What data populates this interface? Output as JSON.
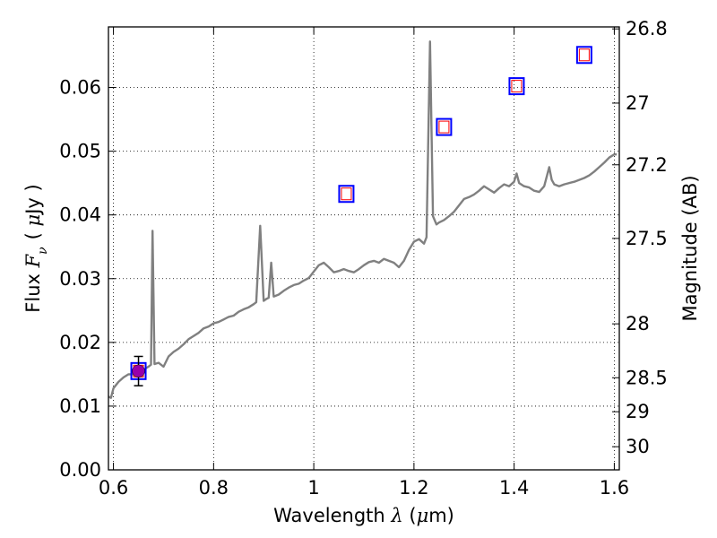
{
  "chart_data": {
    "type": "line",
    "x_axis": {
      "label_prefix": "Wavelength ",
      "label_symbol": "λ",
      "label_unit_open": " (",
      "label_unit_mu": "μ",
      "label_unit_close": "m)",
      "xlim": [
        0.59,
        1.61
      ],
      "ticks": [
        0.6,
        0.8,
        1.0,
        1.2,
        1.4,
        1.6
      ],
      "tick_labels": [
        "0.6",
        "0.8",
        "1",
        "1.2",
        "1.4",
        "1.6"
      ]
    },
    "y_axis_left": {
      "label_prefix": "Flux ",
      "label_symbol": "F",
      "label_subscript": "ν",
      "label_unit_open": "( ",
      "label_unit_mu": "μ",
      "label_unit_close": "Jy )",
      "ylim": [
        0.0,
        0.0695
      ],
      "ticks": [
        0.0,
        0.01,
        0.02,
        0.03,
        0.04,
        0.05,
        0.06
      ],
      "tick_labels": [
        "0.00",
        "0.01",
        "0.02",
        "0.03",
        "0.04",
        "0.05",
        "0.06"
      ]
    },
    "y_axis_right": {
      "label": "Magnitude (AB)",
      "scale": "AB magnitude (reciprocal-log of flux)",
      "ticks": [
        26.8,
        27.0,
        27.2,
        27.5,
        28.0,
        28.5,
        29.0,
        30.0
      ],
      "tick_labels": [
        "26.8",
        "27",
        "27.2",
        "27.5",
        "28",
        "28.5",
        "29",
        "30"
      ]
    },
    "grid": true,
    "grid_style": "dotted",
    "series": [
      {
        "kind": "spectrum",
        "color": "#808080",
        "points": [
          [
            0.59,
            0.0115
          ],
          [
            0.595,
            0.0113
          ],
          [
            0.6,
            0.0128
          ],
          [
            0.61,
            0.0138
          ],
          [
            0.62,
            0.0145
          ],
          [
            0.63,
            0.015
          ],
          [
            0.64,
            0.015
          ],
          [
            0.65,
            0.0156
          ],
          [
            0.66,
            0.0157
          ],
          [
            0.67,
            0.0162
          ],
          [
            0.675,
            0.0165
          ],
          [
            0.678,
            0.0375
          ],
          [
            0.682,
            0.0166
          ],
          [
            0.69,
            0.0168
          ],
          [
            0.7,
            0.0162
          ],
          [
            0.71,
            0.0178
          ],
          [
            0.72,
            0.0185
          ],
          [
            0.73,
            0.019
          ],
          [
            0.74,
            0.0197
          ],
          [
            0.75,
            0.0205
          ],
          [
            0.76,
            0.021
          ],
          [
            0.77,
            0.0215
          ],
          [
            0.78,
            0.0222
          ],
          [
            0.79,
            0.0225
          ],
          [
            0.8,
            0.023
          ],
          [
            0.81,
            0.0232
          ],
          [
            0.82,
            0.0236
          ],
          [
            0.83,
            0.024
          ],
          [
            0.84,
            0.0242
          ],
          [
            0.85,
            0.0248
          ],
          [
            0.86,
            0.0252
          ],
          [
            0.87,
            0.0255
          ],
          [
            0.88,
            0.026
          ],
          [
            0.885,
            0.0263
          ],
          [
            0.893,
            0.0383
          ],
          [
            0.9,
            0.0265
          ],
          [
            0.905,
            0.0268
          ],
          [
            0.91,
            0.027
          ],
          [
            0.915,
            0.0325
          ],
          [
            0.92,
            0.0272
          ],
          [
            0.93,
            0.0275
          ],
          [
            0.94,
            0.0281
          ],
          [
            0.95,
            0.0286
          ],
          [
            0.96,
            0.029
          ],
          [
            0.97,
            0.0292
          ],
          [
            0.98,
            0.0297
          ],
          [
            0.99,
            0.0301
          ],
          [
            1.0,
            0.0311
          ],
          [
            1.01,
            0.0321
          ],
          [
            1.02,
            0.0325
          ],
          [
            1.03,
            0.0318
          ],
          [
            1.04,
            0.031
          ],
          [
            1.05,
            0.0312
          ],
          [
            1.06,
            0.0315
          ],
          [
            1.07,
            0.0312
          ],
          [
            1.08,
            0.031
          ],
          [
            1.09,
            0.0315
          ],
          [
            1.1,
            0.0321
          ],
          [
            1.11,
            0.0326
          ],
          [
            1.12,
            0.0328
          ],
          [
            1.13,
            0.0325
          ],
          [
            1.14,
            0.0331
          ],
          [
            1.15,
            0.0328
          ],
          [
            1.16,
            0.0325
          ],
          [
            1.17,
            0.0318
          ],
          [
            1.18,
            0.0328
          ],
          [
            1.19,
            0.0345
          ],
          [
            1.2,
            0.0358
          ],
          [
            1.21,
            0.0362
          ],
          [
            1.22,
            0.0355
          ],
          [
            1.225,
            0.0365
          ],
          [
            1.232,
            0.0672
          ],
          [
            1.238,
            0.0398
          ],
          [
            1.245,
            0.0385
          ],
          [
            1.25,
            0.0388
          ],
          [
            1.26,
            0.0392
          ],
          [
            1.27,
            0.0398
          ],
          [
            1.28,
            0.0405
          ],
          [
            1.29,
            0.0415
          ],
          [
            1.3,
            0.0425
          ],
          [
            1.31,
            0.0428
          ],
          [
            1.32,
            0.0432
          ],
          [
            1.33,
            0.0438
          ],
          [
            1.34,
            0.0445
          ],
          [
            1.35,
            0.044
          ],
          [
            1.36,
            0.0435
          ],
          [
            1.37,
            0.0442
          ],
          [
            1.38,
            0.0448
          ],
          [
            1.39,
            0.0445
          ],
          [
            1.4,
            0.0452
          ],
          [
            1.405,
            0.0465
          ],
          [
            1.41,
            0.045
          ],
          [
            1.42,
            0.0445
          ],
          [
            1.43,
            0.0443
          ],
          [
            1.44,
            0.0438
          ],
          [
            1.45,
            0.0436
          ],
          [
            1.46,
            0.0445
          ],
          [
            1.47,
            0.0475
          ],
          [
            1.475,
            0.0455
          ],
          [
            1.48,
            0.0448
          ],
          [
            1.49,
            0.0445
          ],
          [
            1.5,
            0.0448
          ],
          [
            1.51,
            0.045
          ],
          [
            1.52,
            0.0452
          ],
          [
            1.53,
            0.0455
          ],
          [
            1.54,
            0.0458
          ],
          [
            1.55,
            0.0462
          ],
          [
            1.56,
            0.0468
          ],
          [
            1.57,
            0.0475
          ],
          [
            1.58,
            0.0482
          ],
          [
            1.59,
            0.049
          ],
          [
            1.6,
            0.0495
          ],
          [
            1.605,
            0.0495
          ]
        ]
      },
      {
        "kind": "photometry-squares",
        "outer_color": "#0000ff",
        "inner_color": "#ff0000",
        "points": [
          [
            0.65,
            0.0155
          ],
          [
            1.065,
            0.0433
          ],
          [
            1.26,
            0.0538
          ],
          [
            1.405,
            0.0602
          ],
          [
            1.54,
            0.0651
          ]
        ]
      },
      {
        "kind": "measured-point",
        "color": "#9900aa",
        "points": [
          [
            0.65,
            0.0155
          ]
        ],
        "y_error": [
          0.0023
        ]
      }
    ]
  }
}
